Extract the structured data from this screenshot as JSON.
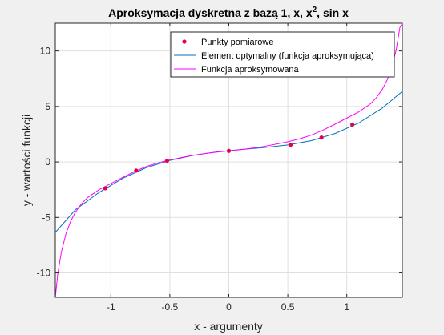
{
  "chart_data": {
    "type": "line",
    "title": "Aproksymacja dyskretna z bazą 1, x, x",
    "title_superscript": "2",
    "title_suffix": ", sin x",
    "xlabel": "x - argumenty",
    "ylabel": "y - wartości funkcji",
    "xlim": [
      -1.4708,
      1.4708
    ],
    "ylim": [
      -12.2,
      12.5
    ],
    "xticks": [
      -1,
      -0.5,
      0,
      0.5,
      1
    ],
    "xtick_labels": [
      "-1",
      "-0.5",
      "0",
      "0.5",
      "1"
    ],
    "yticks": [
      -10,
      -5,
      0,
      5,
      10
    ],
    "ytick_labels": [
      "-10",
      "-5",
      "0",
      "5",
      "10"
    ],
    "grid": true,
    "legend_position": "top-right",
    "series": [
      {
        "name": "Punkty pomiarowe",
        "kind": "markers",
        "color": "#e6004c",
        "x": [
          -1.0472,
          -0.7854,
          -0.5236,
          0.0,
          0.5236,
          0.7854,
          1.0472
        ],
        "y": [
          -2.375,
          -0.778,
          0.1,
          1.0,
          1.55,
          2.198,
          3.369
        ]
      },
      {
        "name": "Element optymalny (funkcja aproksymująca)",
        "kind": "line",
        "color": "#0072bd",
        "x": [
          -1.4708,
          -1.3,
          -1.1,
          -0.9,
          -0.7,
          -0.5,
          -0.3,
          -0.1,
          0.1,
          0.3,
          0.5,
          0.7,
          0.9,
          1.1,
          1.3,
          1.4708
        ],
        "y": [
          -6.35,
          -4.3,
          -2.75,
          -1.48,
          -0.52,
          0.14,
          0.6,
          0.91,
          1.12,
          1.3,
          1.53,
          1.92,
          2.56,
          3.5,
          4.85,
          6.35
        ]
      },
      {
        "name": "Funkcja aproksymowana",
        "kind": "line",
        "color": "#ff00ff",
        "x": [
          -1.4708,
          -1.45,
          -1.42,
          -1.38,
          -1.34,
          -1.3,
          -1.25,
          -1.2,
          -1.1,
          -1.0,
          -0.9,
          -0.8,
          -0.7,
          -0.6,
          -0.5,
          -0.4,
          -0.3,
          -0.2,
          -0.1,
          0.0,
          0.1,
          0.2,
          0.3,
          0.4,
          0.5,
          0.6,
          0.7,
          0.8,
          0.9,
          1.0,
          1.1,
          1.2,
          1.25,
          1.3,
          1.34,
          1.38,
          1.42,
          1.45,
          1.4708
        ],
        "y": [
          -12.2,
          -10.1,
          -8.15,
          -6.45,
          -5.32,
          -4.52,
          -3.78,
          -3.23,
          -2.5,
          -1.95,
          -1.4,
          -0.87,
          -0.42,
          -0.08,
          0.18,
          0.4,
          0.6,
          0.76,
          0.89,
          1.0,
          1.11,
          1.24,
          1.4,
          1.6,
          1.82,
          2.08,
          2.42,
          2.87,
          3.4,
          3.95,
          4.5,
          5.23,
          5.78,
          6.52,
          7.32,
          8.45,
          10.15,
          12.1,
          12.5
        ]
      }
    ]
  }
}
